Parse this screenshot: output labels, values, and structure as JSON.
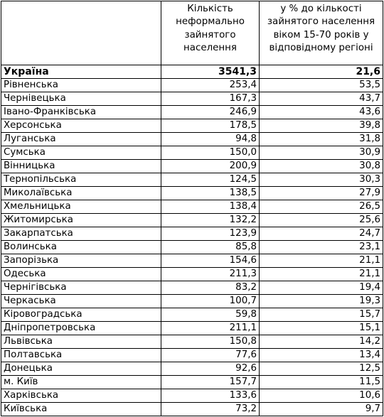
{
  "table": {
    "headers": [
      "",
      "Кількість неформально зайнятого населення",
      "у % до кількості зайнятого населення віком 15-70 років у відповідному регіоні"
    ],
    "total": {
      "region": "Україна",
      "count": "3541,3",
      "percent": "21,6"
    },
    "rows": [
      {
        "region": "Рівненська",
        "count": "253,4",
        "percent": "53,5"
      },
      {
        "region": "Чернівецька",
        "count": "167,3",
        "percent": "43,7"
      },
      {
        "region": "Івано-Франківська",
        "count": "246,9",
        "percent": "43,6"
      },
      {
        "region": "Херсонська",
        "count": "178,5",
        "percent": "39,8"
      },
      {
        "region": "Луганська",
        "count": "94,8",
        "percent": "31,8"
      },
      {
        "region": "Сумська",
        "count": "150,0",
        "percent": "30,9"
      },
      {
        "region": "Вінницька",
        "count": "200,9",
        "percent": "30,8"
      },
      {
        "region": "Тернопільська",
        "count": "124,5",
        "percent": "30,3"
      },
      {
        "region": "Миколаївська",
        "count": "138,5",
        "percent": "27,9"
      },
      {
        "region": "Хмельницька",
        "count": "138,4",
        "percent": "26,5"
      },
      {
        "region": "Житомирська",
        "count": "132,2",
        "percent": "25,6"
      },
      {
        "region": "Закарпатська",
        "count": "123,9",
        "percent": "24,7"
      },
      {
        "region": "Волинська",
        "count": "85,8",
        "percent": "23,1"
      },
      {
        "region": "Запорізька",
        "count": "154,6",
        "percent": "21,1"
      },
      {
        "region": "Одеська",
        "count": "211,3",
        "percent": "21,1"
      },
      {
        "region": "Чернігівська",
        "count": "83,2",
        "percent": "19,4"
      },
      {
        "region": "Черкаська",
        "count": "100,7",
        "percent": "19,3"
      },
      {
        "region": "Кіровоградська",
        "count": "59,8",
        "percent": "15,7"
      },
      {
        "region": "Дніпропетровська",
        "count": "211,1",
        "percent": "15,1"
      },
      {
        "region": "Львівська",
        "count": "150,8",
        "percent": "14,2"
      },
      {
        "region": "Полтавська",
        "count": "77,6",
        "percent": "13,4"
      },
      {
        "region": "Донецька",
        "count": "92,6",
        "percent": "12,5"
      },
      {
        "region": "м. Київ",
        "count": "157,7",
        "percent": "11,5"
      },
      {
        "region": "Харківська",
        "count": "133,6",
        "percent": "10,6"
      },
      {
        "region": "Київська",
        "count": "73,2",
        "percent": "9,7"
      }
    ]
  }
}
